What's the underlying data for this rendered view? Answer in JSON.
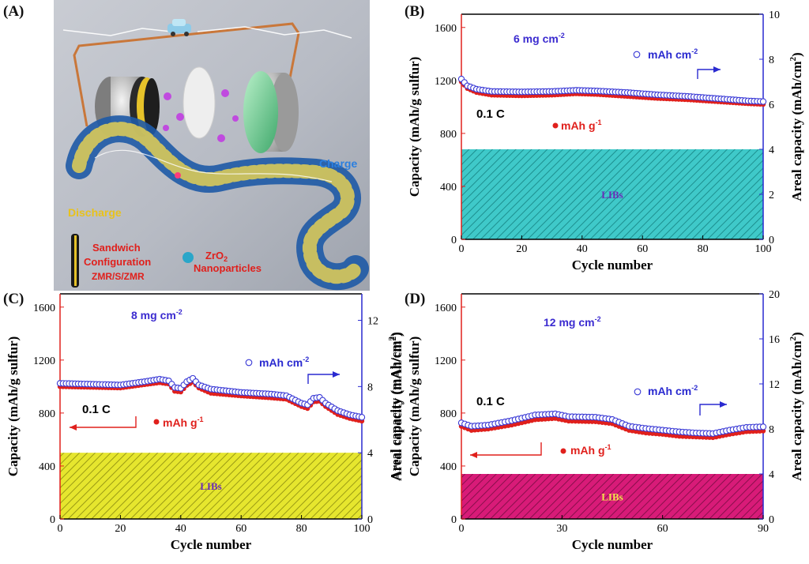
{
  "illustration": {
    "panel_label": "(A)",
    "labels": {
      "discharge": "Discharge",
      "charge": "Charge",
      "sandwich": [
        "Sandwich",
        "Configuration",
        "ZMR/S/ZMR"
      ],
      "zro2": [
        "ZrO",
        "2",
        " Nanoparticles"
      ]
    },
    "colors": {
      "discharge": "#e8c21c",
      "charge": "#2a7fe0",
      "sandwich": "#e0201c",
      "zro2": "#e0201c"
    }
  },
  "chart_data": [
    {
      "id": "B",
      "type": "scatter",
      "panel_label": "(B)",
      "loading_label": "6 mg cm",
      "loading_sup": "-2",
      "rate_label": "0.1 C",
      "xlabel": "Cycle number",
      "ylabel_left": "Capacity (mAh/g sulfur)",
      "ylabel_right": "Areal capacity (mAh/cm",
      "ylabel_right_sup": "2",
      "xlim": [
        0,
        100
      ],
      "ylim_left": [
        0,
        1700
      ],
      "ylim_right": [
        0,
        10
      ],
      "xticks": [
        0,
        20,
        40,
        60,
        80,
        100
      ],
      "yticks_left": [
        0,
        400,
        800,
        1200,
        1600
      ],
      "yticks_right": [
        0,
        2,
        4,
        6,
        8,
        10
      ],
      "series": [
        {
          "name": "mAh g",
          "name_sup": "-1",
          "marker": "filled",
          "axis": "left",
          "color": "#e0201c",
          "knots": [
            [
              0,
              1190
            ],
            [
              2,
              1140
            ],
            [
              5,
              1110
            ],
            [
              10,
              1090
            ],
            [
              20,
              1085
            ],
            [
              30,
              1090
            ],
            [
              38,
              1100
            ],
            [
              45,
              1095
            ],
            [
              55,
              1080
            ],
            [
              65,
              1065
            ],
            [
              75,
              1055
            ],
            [
              85,
              1040
            ],
            [
              95,
              1025
            ],
            [
              100,
              1020
            ]
          ],
          "points": 101
        },
        {
          "name": "mAh cm",
          "name_sup": "-2",
          "marker": "open",
          "axis": "right",
          "color": "#3a3ad6",
          "knots": [
            [
              0,
              7.05
            ],
            [
              2,
              6.75
            ],
            [
              5,
              6.6
            ],
            [
              10,
              6.5
            ],
            [
              20,
              6.48
            ],
            [
              30,
              6.5
            ],
            [
              38,
              6.55
            ],
            [
              45,
              6.52
            ],
            [
              55,
              6.45
            ],
            [
              65,
              6.35
            ],
            [
              75,
              6.28
            ],
            [
              85,
              6.18
            ],
            [
              95,
              6.08
            ],
            [
              100,
              6.05
            ]
          ],
          "points": 101
        }
      ],
      "legend_arrows": {
        "left": "none",
        "right": "up-right"
      },
      "libs_band": {
        "label": "LIBs",
        "value_right": 4.0,
        "fill": "#3fc9c9",
        "hatch": "#1d8f8f",
        "text_color": "#6b2bb8"
      }
    },
    {
      "id": "C",
      "type": "scatter",
      "panel_label": "(C)",
      "loading_label": "8 mg cm",
      "loading_sup": "-2",
      "rate_label": "0.1 C",
      "xlabel": "Cycle number",
      "ylabel_left": "Capacity (mAh/g sulfur)",
      "ylabel_right": "Areal capacity (mAh/cm",
      "ylabel_right_sup": "2",
      "xlim": [
        0,
        100
      ],
      "ylim_left": [
        0,
        1700
      ],
      "ylim_right": [
        0,
        13.6
      ],
      "xticks": [
        0,
        20,
        40,
        60,
        80,
        100
      ],
      "yticks_left": [
        0,
        400,
        800,
        1200,
        1600
      ],
      "yticks_right": [
        0,
        4,
        8,
        12
      ],
      "series": [
        {
          "name": "mAh g",
          "name_sup": "-1",
          "marker": "filled",
          "axis": "left",
          "color": "#e0201c",
          "knots": [
            [
              0,
              1000
            ],
            [
              10,
              995
            ],
            [
              20,
              990
            ],
            [
              28,
              1015
            ],
            [
              33,
              1030
            ],
            [
              36,
              1020
            ],
            [
              38,
              965
            ],
            [
              40,
              960
            ],
            [
              42,
              1010
            ],
            [
              44,
              1035
            ],
            [
              46,
              990
            ],
            [
              50,
              950
            ],
            [
              60,
              930
            ],
            [
              70,
              915
            ],
            [
              75,
              905
            ],
            [
              80,
              850
            ],
            [
              82,
              835
            ],
            [
              84,
              885
            ],
            [
              86,
              890
            ],
            [
              88,
              850
            ],
            [
              92,
              790
            ],
            [
              96,
              760
            ],
            [
              100,
              740
            ]
          ],
          "points": 101
        },
        {
          "name": "mAh cm",
          "name_sup": "-2",
          "marker": "open",
          "axis": "right",
          "color": "#3a3ad6",
          "knots": [
            [
              0,
              8.1
            ],
            [
              10,
              8.05
            ],
            [
              20,
              8.0
            ],
            [
              28,
              8.2
            ],
            [
              33,
              8.35
            ],
            [
              36,
              8.25
            ],
            [
              38,
              7.85
            ],
            [
              40,
              7.8
            ],
            [
              42,
              8.2
            ],
            [
              44,
              8.4
            ],
            [
              46,
              8.0
            ],
            [
              50,
              7.75
            ],
            [
              60,
              7.55
            ],
            [
              70,
              7.45
            ],
            [
              75,
              7.35
            ],
            [
              80,
              6.9
            ],
            [
              82,
              6.8
            ],
            [
              84,
              7.2
            ],
            [
              86,
              7.25
            ],
            [
              88,
              6.9
            ],
            [
              92,
              6.45
            ],
            [
              96,
              6.2
            ],
            [
              100,
              6.05
            ]
          ],
          "points": 101
        }
      ],
      "legend_arrows": {
        "left": "left",
        "right": "up-right"
      },
      "libs_band": {
        "label": "LIBs",
        "value_right": 4.0,
        "fill": "#e6e62e",
        "hatch": "#9a9a14",
        "text_color": "#6b2bb8"
      }
    },
    {
      "id": "D",
      "type": "scatter",
      "panel_label": "(D)",
      "loading_label": "12 mg cm",
      "loading_sup": "-2",
      "rate_label": "0.1 C",
      "xlabel": "Cycle number",
      "ylabel_left": "Capacity (mAh/g sulfur)",
      "ylabel_right": "Areal capacity (mAh/cm",
      "ylabel_right_sup": "2",
      "ylabel_extra": "Areal capacity (mAh/cm",
      "xlim": [
        0,
        90
      ],
      "ylim_left": [
        0,
        1700
      ],
      "ylim_right": [
        0,
        20
      ],
      "xticks": [
        0,
        30,
        60,
        90
      ],
      "yticks_left": [
        0,
        400,
        800,
        1200,
        1600
      ],
      "yticks_right": [
        0,
        4,
        8,
        12,
        16,
        20
      ],
      "series": [
        {
          "name": "mAh g",
          "name_sup": "-1",
          "marker": "filled",
          "axis": "left",
          "color": "#e0201c",
          "knots": [
            [
              0,
              700
            ],
            [
              3,
              670
            ],
            [
              8,
              680
            ],
            [
              15,
              710
            ],
            [
              22,
              750
            ],
            [
              28,
              760
            ],
            [
              32,
              740
            ],
            [
              40,
              735
            ],
            [
              45,
              720
            ],
            [
              50,
              670
            ],
            [
              55,
              650
            ],
            [
              60,
              640
            ],
            [
              65,
              625
            ],
            [
              70,
              620
            ],
            [
              75,
              615
            ],
            [
              80,
              640
            ],
            [
              85,
              660
            ],
            [
              90,
              665
            ]
          ],
          "points": 91
        },
        {
          "name": "mAh cm",
          "name_sup": "-2",
          "marker": "open",
          "axis": "right",
          "color": "#3a3ad6",
          "knots": [
            [
              0,
              8.4
            ],
            [
              3,
              8.1
            ],
            [
              8,
              8.2
            ],
            [
              15,
              8.6
            ],
            [
              22,
              9.1
            ],
            [
              28,
              9.2
            ],
            [
              32,
              8.95
            ],
            [
              40,
              8.9
            ],
            [
              45,
              8.7
            ],
            [
              50,
              8.1
            ],
            [
              55,
              7.9
            ],
            [
              60,
              7.75
            ],
            [
              65,
              7.6
            ],
            [
              70,
              7.5
            ],
            [
              75,
              7.45
            ],
            [
              80,
              7.75
            ],
            [
              85,
              8.0
            ],
            [
              90,
              8.05
            ]
          ],
          "points": 91
        }
      ],
      "legend_arrows": {
        "left": "left",
        "right": "up-right"
      },
      "libs_band": {
        "label": "LIBs",
        "value_right": 4.0,
        "fill": "#d81b78",
        "hatch": "#8a0f4c",
        "text_color": "#f2e64a"
      }
    }
  ]
}
